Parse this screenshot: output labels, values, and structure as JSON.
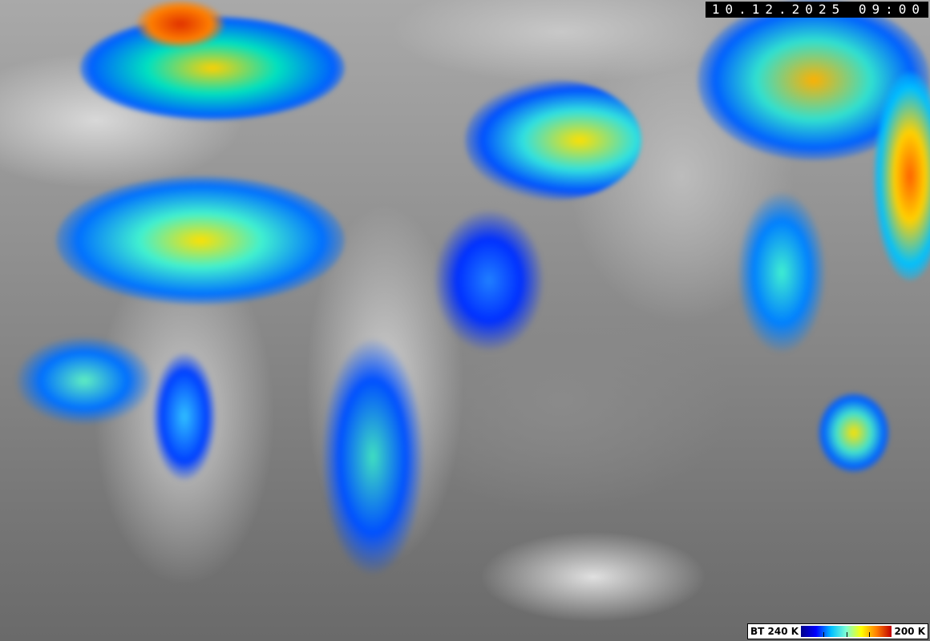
{
  "timestamp": "10.12.2025 09:00",
  "legend": {
    "low_label": "BT 240 K",
    "high_label": "200 K",
    "colors": [
      "#00008b",
      "#0000ff",
      "#00bfff",
      "#7fffd4",
      "#ffff00",
      "#ff8000",
      "#c00000"
    ]
  }
}
